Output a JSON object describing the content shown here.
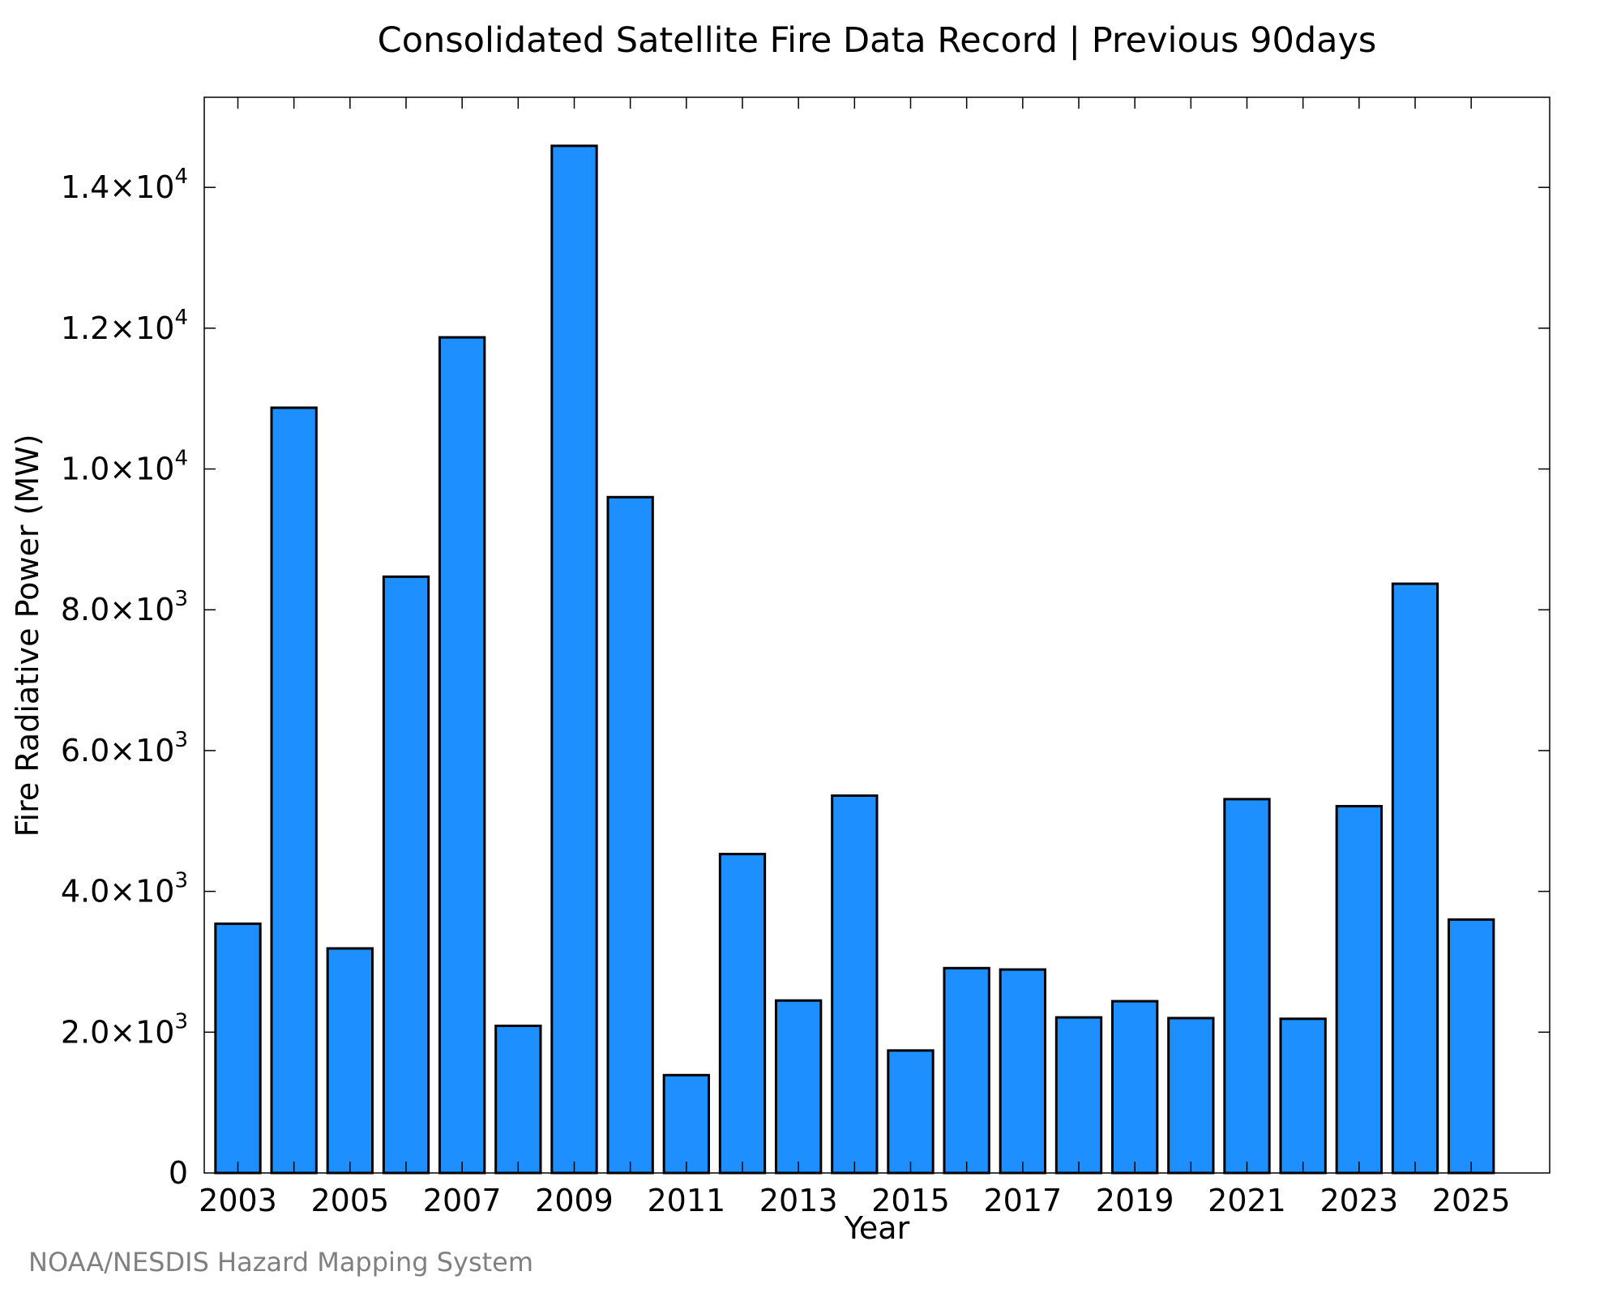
{
  "chart_data": {
    "type": "bar",
    "title": "Consolidated Satellite Fire Data Record | Previous 90days",
    "xlabel": "Year",
    "ylabel": "Fire Radiative Power (MW)",
    "categories": [
      "2003",
      "2004",
      "2005",
      "2006",
      "2007",
      "2008",
      "2009",
      "2010",
      "2011",
      "2012",
      "2013",
      "2014",
      "2015",
      "2016",
      "2017",
      "2018",
      "2019",
      "2020",
      "2021",
      "2022",
      "2023",
      "2024",
      "2025"
    ],
    "values": [
      3540,
      10870,
      3190,
      8470,
      11870,
      2090,
      14590,
      9600,
      1390,
      4530,
      2450,
      5360,
      1740,
      2910,
      2890,
      2210,
      2440,
      2200,
      5310,
      2190,
      5210,
      8370,
      3600
    ],
    "x_tick_labels": [
      "2003",
      "2005",
      "2007",
      "2009",
      "2011",
      "2013",
      "2015",
      "2017",
      "2019",
      "2021",
      "2023",
      "2025"
    ],
    "y_ticks": [
      {
        "value": 0,
        "mantissa": "0",
        "exp": ""
      },
      {
        "value": 2000,
        "mantissa": "2.0×10",
        "exp": "3"
      },
      {
        "value": 4000,
        "mantissa": "4.0×10",
        "exp": "3"
      },
      {
        "value": 6000,
        "mantissa": "6.0×10",
        "exp": "3"
      },
      {
        "value": 8000,
        "mantissa": "8.0×10",
        "exp": "3"
      },
      {
        "value": 10000,
        "mantissa": "1.0×10",
        "exp": "4"
      },
      {
        "value": 12000,
        "mantissa": "1.2×10",
        "exp": "4"
      },
      {
        "value": 14000,
        "mantissa": "1.4×10",
        "exp": "4"
      }
    ],
    "ylim": [
      0,
      15280
    ],
    "xlim": [
      2002.4,
      2026.4
    ],
    "grid": false,
    "bar_color": "#1e8fff",
    "bar_edge_color": "#000000"
  },
  "credit": "NOAA/NESDIS Hazard Mapping System"
}
